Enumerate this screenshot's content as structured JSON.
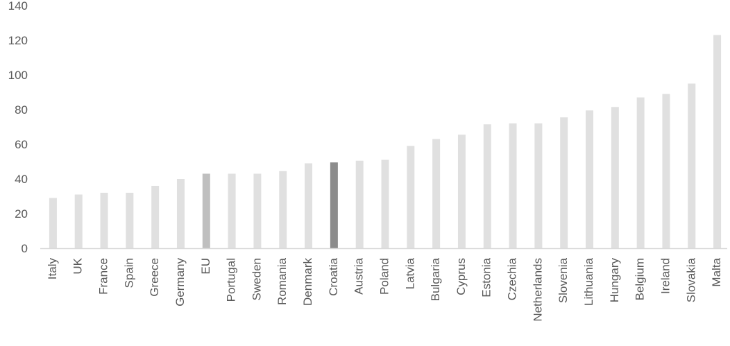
{
  "chart_data": {
    "type": "bar",
    "title": "",
    "xlabel": "",
    "ylabel": "",
    "ylim": [
      0,
      140
    ],
    "yticks": [
      0,
      20,
      40,
      60,
      80,
      100,
      120,
      140
    ],
    "grid": false,
    "legend": "none",
    "categories": [
      "Italy",
      "UK",
      "France",
      "Spain",
      "Greece",
      "Germany",
      "EU",
      "Portugal",
      "Sweden",
      "Romania",
      "Denmark",
      "Croatia",
      "Austria",
      "Poland",
      "Latvia",
      "Bulgaria",
      "Cyprus",
      "Estonia",
      "Czechia",
      "Netherlands",
      "Slovenia",
      "Lithuania",
      "Hungary",
      "Belgium",
      "Ireland",
      "Slovakia",
      "Malta"
    ],
    "values": [
      29,
      31,
      32,
      32,
      36,
      40,
      43,
      43,
      43,
      44.5,
      49,
      49.5,
      50.5,
      51,
      59,
      63,
      65.5,
      71.5,
      72,
      72,
      75.5,
      79.5,
      81.5,
      87,
      89,
      95,
      123
    ],
    "colors": {
      "default": "#e0e0e0",
      "highlight_eu": "#bfbfbf",
      "highlight_croatia": "#8c8c8c",
      "axis": "#d9d9d9",
      "text": "#595959"
    },
    "highlights": {
      "EU": "highlight_eu",
      "Croatia": "highlight_croatia"
    }
  }
}
